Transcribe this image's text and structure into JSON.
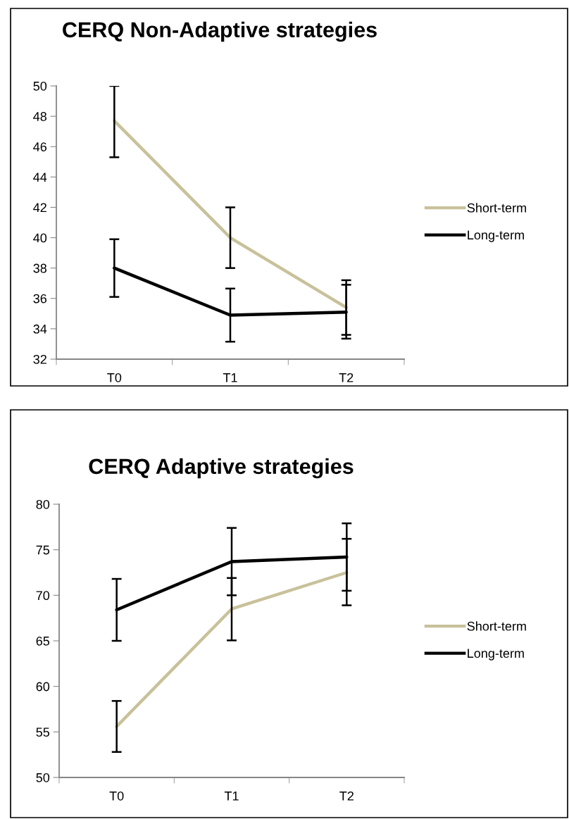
{
  "chart_data": [
    {
      "type": "line",
      "title": "CERQ Non-Adaptive strategies",
      "categories": [
        "T0",
        "T1",
        "T2"
      ],
      "ylim": [
        32,
        50
      ],
      "yticks": [
        32,
        34,
        36,
        38,
        40,
        42,
        44,
        46,
        48,
        50
      ],
      "grid": false,
      "legend": "right",
      "series": [
        {
          "name": "Short-term",
          "color": "#c8c19a",
          "values": [
            47.7,
            40.0,
            35.4
          ],
          "errors": [
            [
              45.3,
              50
            ],
            [
              38.0,
              42.0
            ],
            [
              33.6,
              37.2
            ]
          ]
        },
        {
          "name": "Long-term",
          "color": "#000000",
          "values": [
            38.0,
            34.9,
            35.1
          ],
          "errors": [
            [
              36.1,
              39.9
            ],
            [
              33.15,
              36.65
            ],
            [
              33.35,
              36.9
            ]
          ]
        }
      ]
    },
    {
      "type": "line",
      "title": "CERQ Adaptive strategies",
      "categories": [
        "T0",
        "T1",
        "T2"
      ],
      "ylim": [
        50,
        80
      ],
      "yticks": [
        50,
        55,
        60,
        65,
        70,
        75,
        80
      ],
      "grid": false,
      "legend": "right",
      "series": [
        {
          "name": "Short-term",
          "color": "#c8c19a",
          "values": [
            55.6,
            68.5,
            72.5
          ],
          "errors": [
            [
              52.8,
              58.4
            ],
            [
              65.05,
              71.9
            ],
            [
              68.9,
              76.2
            ]
          ]
        },
        {
          "name": "Long-term",
          "color": "#000000",
          "values": [
            68.4,
            73.7,
            74.2
          ],
          "errors": [
            [
              65.0,
              71.8
            ],
            [
              70.0,
              77.4
            ],
            [
              70.5,
              77.9
            ]
          ]
        }
      ]
    }
  ]
}
